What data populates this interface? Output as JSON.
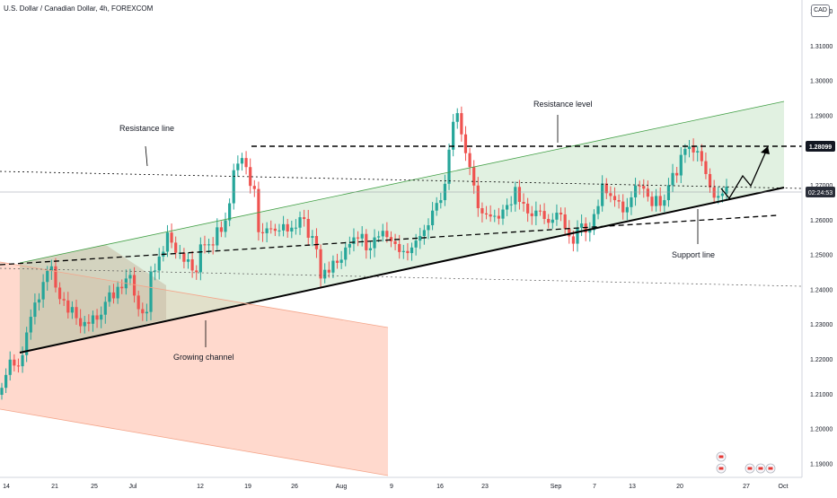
{
  "header": {
    "title": "U.S. Dollar / Canadian Dollar, 4h, FOREXCOM"
  },
  "currency_badge": "CAD",
  "colors": {
    "up": "#26a69a",
    "down": "#ef5350",
    "channel_fill": "#c8e6c9",
    "down_channel_fill": "#ffccbc",
    "overlap_fill": "#c9b9a4",
    "price_label_bg": "#131722",
    "time_label_bg": "#2a2e39"
  },
  "chart_data": {
    "type": "candlestick",
    "symbol": "USDCAD",
    "timeframe": "4h",
    "ylim": [
      1.185,
      1.325
    ],
    "y_ticks": [
      "1.19000",
      "1.20000",
      "1.21000",
      "1.22000",
      "1.23000",
      "1.24000",
      "1.25000",
      "1.26000",
      "1.27000",
      "1.29000",
      "1.30000",
      "1.31000",
      "1.32000"
    ],
    "x_ticks": [
      "14",
      "21",
      "25",
      "Jul",
      "12",
      "19",
      "26",
      "Aug",
      "9",
      "16",
      "23",
      "Sep",
      "7",
      "13",
      "20",
      "27",
      "Oct"
    ],
    "price_labels": {
      "resistance": "1.28099",
      "current_time": "02:24:53"
    },
    "annotations": [
      "Resistance line",
      "Resistance level",
      "Growing channel",
      "Support line"
    ],
    "closes": [
      1.2117,
      1.2154,
      1.2198,
      1.2181,
      1.2179,
      1.2211,
      1.2276,
      1.2321,
      1.2362,
      1.2371,
      1.2421,
      1.2453,
      1.2466,
      1.2405,
      1.2372,
      1.2368,
      1.2333,
      1.2349,
      1.2317,
      1.2294,
      1.2306,
      1.2301,
      1.2325,
      1.2313,
      1.2327,
      1.2364,
      1.2391,
      1.2374,
      1.2407,
      1.2403,
      1.2431,
      1.2441,
      1.2382,
      1.2343,
      1.2331,
      1.2335,
      1.2451,
      1.2454,
      1.2494,
      1.2508,
      1.2563,
      1.2534,
      1.2505,
      1.2505,
      1.2479,
      1.2486,
      1.2454,
      1.2449,
      1.2529,
      1.2527,
      1.2529,
      1.2526,
      1.2578,
      1.2565,
      1.2598,
      1.2647,
      1.2742,
      1.2761,
      1.2777,
      1.2751,
      1.2697,
      1.2688,
      1.2564,
      1.2561,
      1.2575,
      1.2574,
      1.2568,
      1.2569,
      1.2587,
      1.2566,
      1.2577,
      1.2577,
      1.2607,
      1.2602,
      1.2548,
      1.2553,
      1.2515,
      1.2431,
      1.2456,
      1.2448,
      1.2482,
      1.2476,
      1.2485,
      1.252,
      1.253,
      1.2549,
      1.2546,
      1.2559,
      1.2512,
      1.2518,
      1.2549,
      1.2552,
      1.2568,
      1.255,
      1.2538,
      1.253,
      1.2507,
      1.251,
      1.2504,
      1.252,
      1.254,
      1.2553,
      1.257,
      1.2584,
      1.2626,
      1.2648,
      1.2656,
      1.2703,
      1.2801,
      1.2881,
      1.2906,
      1.2845,
      1.2791,
      1.2751,
      1.2698,
      1.2633,
      1.2618,
      1.2615,
      1.2609,
      1.2611,
      1.2603,
      1.2629,
      1.2642,
      1.2644,
      1.2694,
      1.2651,
      1.2646,
      1.2618,
      1.261,
      1.2626,
      1.2625,
      1.2602,
      1.2591,
      1.26,
      1.262,
      1.2615,
      1.2574,
      1.2552,
      1.2531,
      1.2577,
      1.2589,
      1.2563,
      1.257,
      1.2616,
      1.2639,
      1.2704,
      1.2676,
      1.2668,
      1.2656,
      1.2652,
      1.2621,
      1.2636,
      1.2664,
      1.2698,
      1.2697,
      1.2689,
      1.2666,
      1.2639,
      1.2668,
      1.264,
      1.2656,
      1.2699,
      1.2734,
      1.2727,
      1.2786,
      1.2803,
      1.281,
      1.2793,
      1.2797,
      1.2768,
      1.2731,
      1.2693,
      1.2663,
      1.2668,
      1.2675,
      1.2695
    ]
  }
}
